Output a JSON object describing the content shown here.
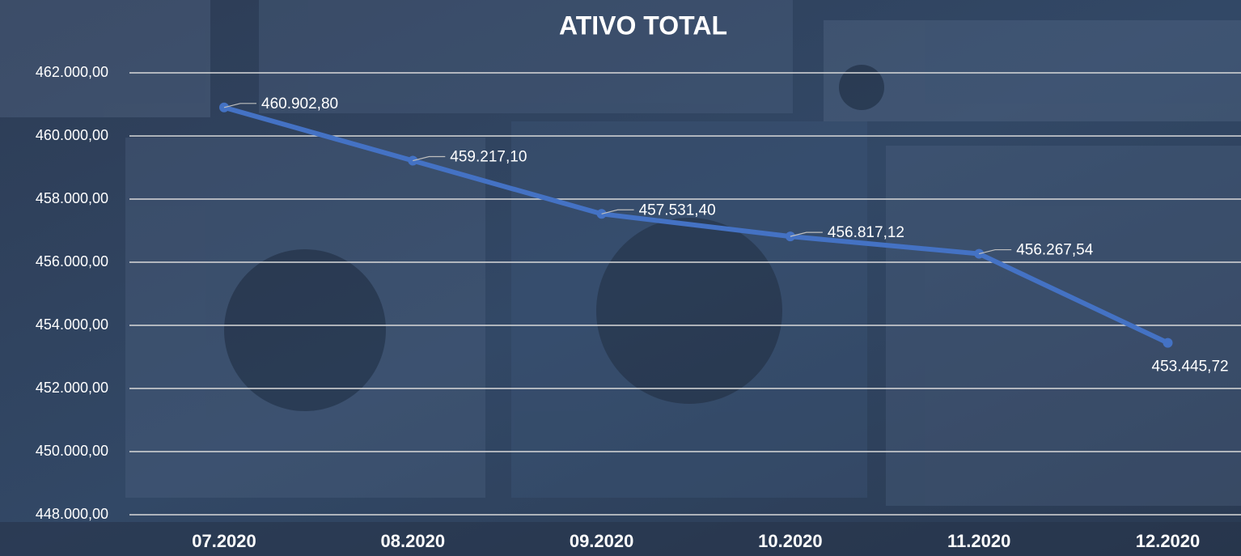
{
  "chart_data": {
    "type": "line",
    "title": "ATIVO TOTAL",
    "categories": [
      "07.2020",
      "08.2020",
      "09.2020",
      "10.2020",
      "11.2020",
      "12.2020"
    ],
    "series": [
      {
        "color": "#4472c4",
        "values": [
          460902.8,
          459217.1,
          457531.4,
          456817.12,
          456267.54,
          453445.72
        ],
        "value_labels": [
          "460.902,80",
          "459.217,10",
          "457.531,40",
          "456.817,12",
          "456.267,54",
          "453.445,72"
        ]
      }
    ],
    "ylim": [
      448000,
      462000
    ],
    "yticks": [
      {
        "value": 448000,
        "label": "448.000,00"
      },
      {
        "value": 450000,
        "label": "450.000,00"
      },
      {
        "value": 452000,
        "label": "452.000,00"
      },
      {
        "value": 454000,
        "label": "454.000,00"
      },
      {
        "value": 456000,
        "label": "456.000,00"
      },
      {
        "value": 458000,
        "label": "458.000,00"
      },
      {
        "value": 460000,
        "label": "460.000,00"
      },
      {
        "value": 462000,
        "label": "462.000,00"
      }
    ],
    "grid": true
  }
}
